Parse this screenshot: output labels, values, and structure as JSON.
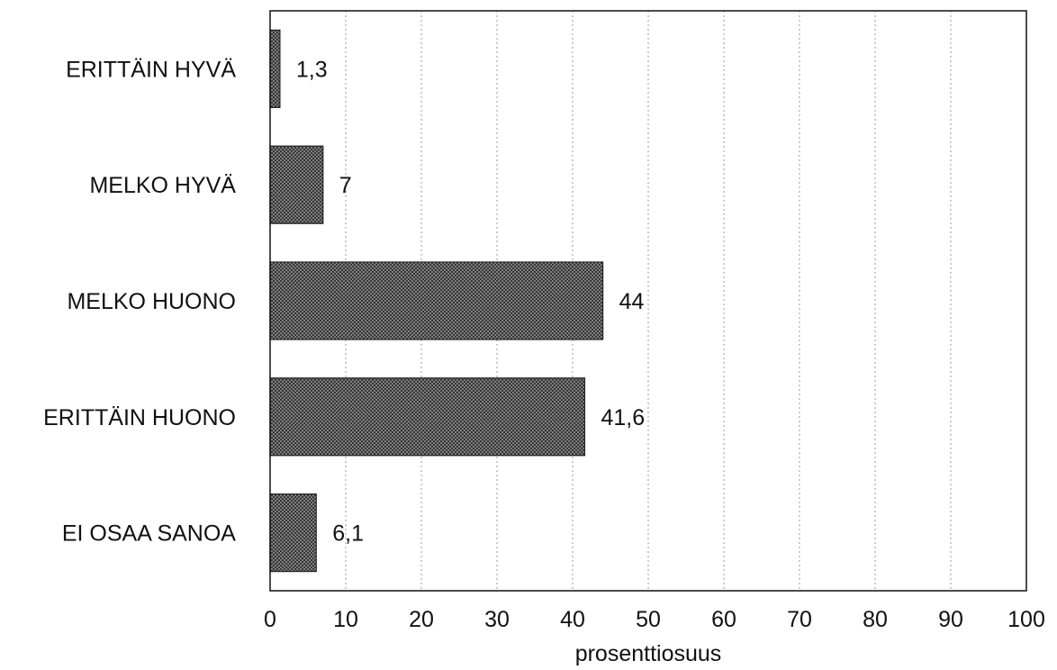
{
  "chart_data": {
    "type": "bar",
    "orientation": "horizontal",
    "categories": [
      "ERITTÄIN HYVÄ",
      "MELKO HYVÄ",
      "MELKO HUONO",
      "ERITTÄIN HUONO",
      "EI OSAA SANOA"
    ],
    "values": [
      1.3,
      7,
      44,
      41.6,
      6.1
    ],
    "value_labels": [
      "1,3",
      "7",
      "44",
      "41,6",
      "6,1"
    ],
    "xlabel": "prosenttiosuus",
    "ylabel": "",
    "title": "",
    "xlim": [
      0,
      100
    ],
    "xticks": [
      0,
      10,
      20,
      30,
      40,
      50,
      60,
      70,
      80,
      90,
      100
    ],
    "grid": "vertical dotted",
    "bar_fill": "crosshatch gray",
    "colors": {
      "bar": "#8c8c8c",
      "bar_hatch": "#333333",
      "text": "#111111"
    }
  }
}
